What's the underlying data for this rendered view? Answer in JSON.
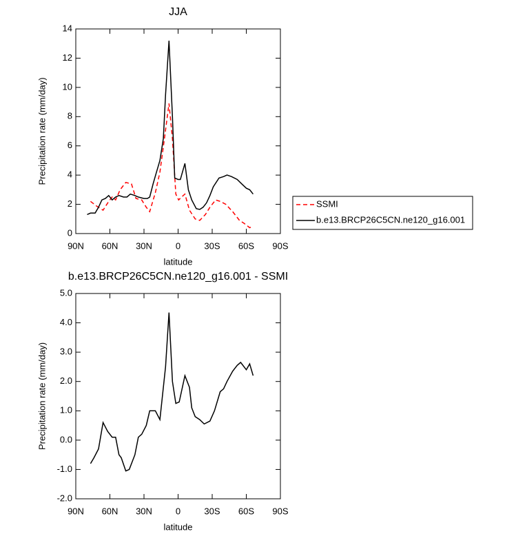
{
  "chart_data": [
    {
      "type": "line",
      "title": "JJA",
      "x_label": "latitude",
      "y_label": "Precipitation rate (mm/day)",
      "xlim": [
        90,
        -90
      ],
      "xticks": [
        {
          "value": 90,
          "label": "90N"
        },
        {
          "value": 60,
          "label": "60N"
        },
        {
          "value": 30,
          "label": "30N"
        },
        {
          "value": 0,
          "label": "0"
        },
        {
          "value": -30,
          "label": "30S"
        },
        {
          "value": -60,
          "label": "60S"
        },
        {
          "value": -90,
          "label": "90S"
        }
      ],
      "ylim": [
        0,
        14
      ],
      "yticks": [
        0,
        2,
        4,
        6,
        8,
        10,
        12,
        14
      ],
      "legend": "right",
      "series": [
        {
          "name": "SSMI",
          "color": "#ff0000",
          "dash": true,
          "x": [
            77,
            72,
            66,
            61,
            58,
            55,
            51,
            46,
            41,
            37,
            32,
            28,
            25,
            20,
            16,
            12,
            8,
            5,
            2,
            -0.5,
            -3,
            -6,
            -10,
            -15,
            -19,
            -24,
            -28,
            -33,
            -37,
            -42,
            -48,
            -54,
            -58,
            -63,
            -66
          ],
          "values": [
            2.2,
            1.9,
            1.6,
            2.2,
            2.5,
            2.3,
            3.0,
            3.5,
            3.4,
            2.4,
            2.3,
            1.8,
            1.5,
            2.8,
            4.2,
            6.5,
            8.9,
            6.5,
            2.7,
            2.3,
            2.5,
            2.7,
            1.6,
            1.0,
            0.9,
            1.3,
            1.8,
            2.3,
            2.2,
            2.0,
            1.5,
            0.9,
            0.7,
            0.4,
            0.5
          ]
        },
        {
          "name": "b.e13.BRCP26C5CN.ne120_g16.001",
          "color": "#000000",
          "dash": false,
          "x": [
            80,
            77,
            73,
            70,
            67,
            64,
            61,
            58,
            55,
            52,
            48,
            45,
            42,
            38,
            35,
            30,
            27,
            25,
            22,
            19,
            16,
            13,
            11,
            8,
            5,
            3,
            0,
            -2,
            -6,
            -9,
            -12,
            -16,
            -19,
            -22,
            -25,
            -28,
            -31,
            -36,
            -40,
            -43,
            -47,
            -52,
            -56,
            -60,
            -63,
            -66
          ],
          "values": [
            1.3,
            1.4,
            1.4,
            1.8,
            2.3,
            2.4,
            2.6,
            2.3,
            2.5,
            2.6,
            2.5,
            2.5,
            2.7,
            2.6,
            2.5,
            2.4,
            2.4,
            2.5,
            3.4,
            4.2,
            5.0,
            6.5,
            9.5,
            13.2,
            8.0,
            3.8,
            3.7,
            3.7,
            4.8,
            3.0,
            2.3,
            1.7,
            1.65,
            1.8,
            2.1,
            2.6,
            3.2,
            3.8,
            3.9,
            4.0,
            3.9,
            3.7,
            3.4,
            3.1,
            3.0,
            2.7
          ]
        }
      ]
    },
    {
      "type": "line",
      "title": "b.e13.BRCP26C5CN.ne120_g16.001 - SSMI",
      "x_label": "latitude",
      "y_label": "Precipitation rate (mm/day)",
      "xlim": [
        90,
        -90
      ],
      "xticks": [
        {
          "value": 90,
          "label": "90N"
        },
        {
          "value": 60,
          "label": "60N"
        },
        {
          "value": 30,
          "label": "30N"
        },
        {
          "value": 0,
          "label": "0"
        },
        {
          "value": -30,
          "label": "30S"
        },
        {
          "value": -60,
          "label": "60S"
        },
        {
          "value": -90,
          "label": "90S"
        }
      ],
      "ylim": [
        -2,
        5
      ],
      "yticks": [
        {
          "value": -2,
          "label": "-2.0"
        },
        {
          "value": -1,
          "label": "-1.0"
        },
        {
          "value": 0,
          "label": "0.0"
        },
        {
          "value": 1,
          "label": "1.0"
        },
        {
          "value": 2,
          "label": "2.0"
        },
        {
          "value": 3,
          "label": "3.0"
        },
        {
          "value": 4,
          "label": "4.0"
        },
        {
          "value": 5,
          "label": "5.0"
        }
      ],
      "series": [
        {
          "color": "#000000",
          "dash": false,
          "x": [
            77,
            74,
            70,
            66,
            62,
            58,
            55,
            52,
            50,
            46,
            43,
            38,
            35,
            32,
            28,
            25,
            20,
            16,
            11,
            8,
            5,
            2,
            -1,
            -6,
            -10,
            -12,
            -15,
            -19,
            -23,
            -28,
            -32,
            -37,
            -40,
            -43,
            -48,
            -52,
            -55,
            -60,
            -63,
            -66
          ],
          "values": [
            -0.8,
            -0.6,
            -0.3,
            0.6,
            0.3,
            0.1,
            0.1,
            -0.5,
            -0.6,
            -1.05,
            -1.0,
            -0.5,
            0.1,
            0.2,
            0.5,
            1.0,
            1.0,
            0.7,
            2.5,
            4.35,
            2.0,
            1.25,
            1.3,
            2.2,
            1.8,
            1.1,
            0.8,
            0.7,
            0.55,
            0.65,
            1.0,
            1.65,
            1.75,
            2.0,
            2.35,
            2.55,
            2.65,
            2.4,
            2.6,
            2.2
          ]
        }
      ]
    }
  ]
}
